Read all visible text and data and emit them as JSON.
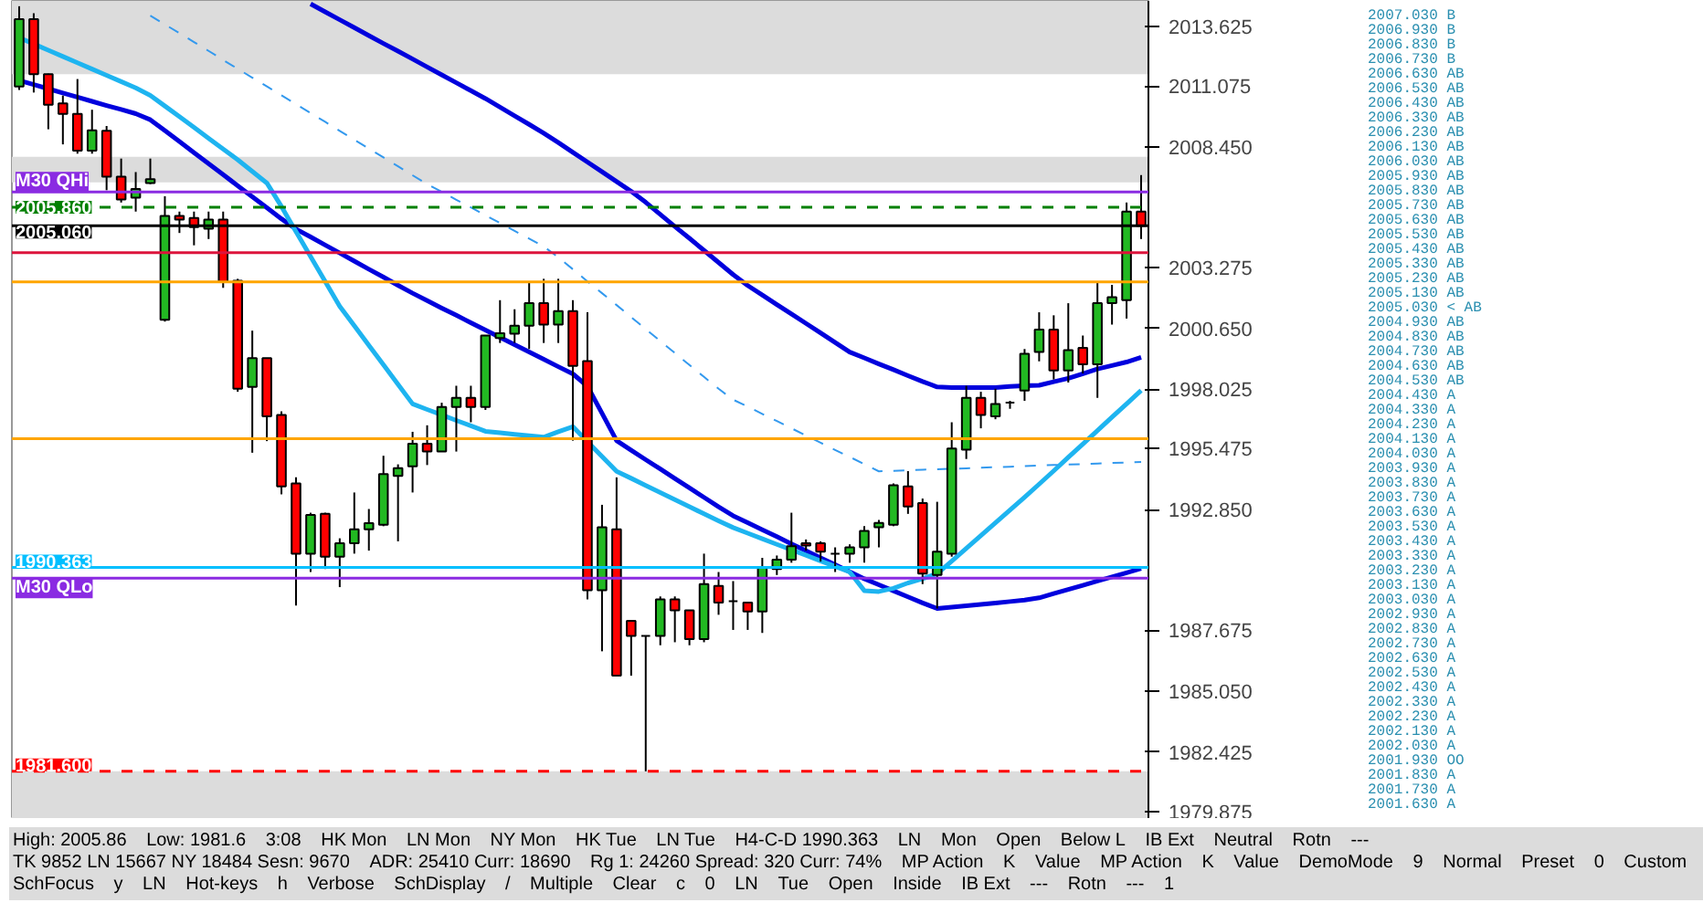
{
  "chart_data": {
    "type": "candlestick",
    "categories": [
      null,
      null,
      null,
      null,
      null,
      null,
      null,
      null,
      null,
      null,
      null,
      null,
      null,
      null,
      null,
      null,
      null,
      null,
      null,
      null,
      null,
      null,
      null,
      null,
      null,
      null,
      null,
      null,
      null,
      null,
      null,
      null,
      null,
      null,
      null,
      null,
      null,
      null,
      null,
      null,
      null,
      null,
      null,
      null,
      null,
      null,
      null,
      null,
      null,
      null,
      null,
      null,
      null,
      null,
      null,
      null,
      null,
      null,
      null,
      null,
      null,
      null,
      null,
      null,
      null,
      null,
      null,
      null,
      null,
      null,
      null,
      null,
      null,
      null,
      null,
      null,
      null,
      null
    ],
    "ohlc": [
      [
        2011.05,
        2014.5,
        2010.9,
        2013.94
      ],
      [
        2013.94,
        2014.2,
        2010.79,
        2011.58
      ],
      [
        2011.58,
        2011.6,
        2009.21,
        2010.26
      ],
      [
        2010.32,
        2010.66,
        2008.56,
        2009.87
      ],
      [
        2009.87,
        2011.37,
        2008.16,
        2008.29
      ],
      [
        2008.29,
        2010.05,
        2008.16,
        2009.16
      ],
      [
        2009.14,
        2009.35,
        2006.59,
        2007.17
      ],
      [
        2007.17,
        2007.95,
        2006.06,
        2006.19
      ],
      [
        2006.27,
        2007.37,
        2005.67,
        2006.64
      ],
      [
        2006.9,
        2007.95,
        2006.85,
        2007.06
      ],
      [
        2001.02,
        2006.33,
        2000.94,
        2005.48
      ],
      [
        2005.48,
        2005.67,
        2004.75,
        2005.33
      ],
      [
        2005.4,
        2005.67,
        2004.22,
        2005.0
      ],
      [
        2004.93,
        2005.67,
        2004.49,
        2005.33
      ],
      [
        2005.33,
        2005.67,
        2002.39,
        2002.65
      ],
      [
        2002.7,
        2002.78,
        1997.92,
        1998.05
      ],
      [
        1998.13,
        2000.55,
        1995.3,
        1999.37
      ],
      [
        1999.37,
        1999.37,
        1995.8,
        1996.87
      ],
      [
        1996.92,
        1997.08,
        1993.51,
        1993.85
      ],
      [
        1993.98,
        1994.24,
        1988.73,
        1990.96
      ],
      [
        1990.96,
        1992.72,
        1990.17,
        1992.62
      ],
      [
        1992.67,
        1992.72,
        1990.3,
        1990.83
      ],
      [
        1990.83,
        1991.62,
        1989.52,
        1991.41
      ],
      [
        1991.41,
        1993.59,
        1990.96,
        1992.01
      ],
      [
        1992.01,
        1992.88,
        1991.09,
        1992.27
      ],
      [
        1992.2,
        1995.17,
        1992.14,
        1994.38
      ],
      [
        1994.3,
        1994.8,
        1991.49,
        1994.64
      ],
      [
        1994.72,
        1996.2,
        1993.59,
        1995.69
      ],
      [
        1995.69,
        1996.48,
        1994.77,
        1995.35
      ],
      [
        1995.35,
        1997.45,
        1995.35,
        1997.27
      ],
      [
        1997.27,
        1998.18,
        1995.35,
        1997.66
      ],
      [
        1997.66,
        1998.18,
        1996.61,
        1997.27
      ],
      [
        1997.27,
        2000.34,
        1997.14,
        2000.34
      ],
      [
        2000.23,
        2001.86,
        2000.02,
        2000.44
      ],
      [
        2000.42,
        2001.47,
        2000.02,
        2000.76
      ],
      [
        2000.76,
        2002.65,
        1999.76,
        2001.73
      ],
      [
        2001.73,
        2002.78,
        2000.02,
        2000.81
      ],
      [
        2000.81,
        2002.78,
        2000.02,
        2001.39
      ],
      [
        2001.39,
        2001.86,
        1995.82,
        1999.03
      ],
      [
        1999.24,
        2001.34,
        1988.99,
        1989.39
      ],
      [
        1989.39,
        1993.06,
        1986.76,
        1992.09
      ],
      [
        1992.01,
        1994.24,
        1985.71,
        1985.71
      ],
      [
        1988.07,
        1988.07,
        1985.71,
        1987.42
      ],
      [
        1987.42,
        1987.42,
        1981.6,
        1987.42
      ],
      [
        1987.42,
        1989.12,
        1987.02,
        1988.99
      ],
      [
        1988.99,
        1989.12,
        1987.15,
        1988.52
      ],
      [
        1988.52,
        1988.52,
        1987.02,
        1987.28
      ],
      [
        1987.28,
        1990.96,
        1987.15,
        1989.65
      ],
      [
        1989.57,
        1990.17,
        1988.33,
        1988.86
      ],
      [
        1988.91,
        1989.78,
        1987.68,
        1988.91
      ],
      [
        1988.86,
        1988.86,
        1987.68,
        1988.47
      ],
      [
        1988.47,
        1990.78,
        1987.55,
        1990.36
      ],
      [
        1990.3,
        1990.88,
        1990.04,
        1990.7
      ],
      [
        1990.7,
        1992.72,
        1990.57,
        1991.28
      ],
      [
        1991.41,
        1991.57,
        1991.09,
        1991.31
      ],
      [
        1991.41,
        1991.49,
        1990.62,
        1991.04
      ],
      [
        1990.96,
        1991.23,
        1990.17,
        1990.96
      ],
      [
        1990.96,
        1991.36,
        1990.57,
        1991.23
      ],
      [
        1991.23,
        1992.14,
        1990.57,
        1991.94
      ],
      [
        1992.09,
        1992.41,
        1991.23,
        1992.28
      ],
      [
        1992.2,
        1993.98,
        1992.14,
        1993.9
      ],
      [
        1993.85,
        1994.51,
        1992.67,
        1992.99
      ],
      [
        1993.14,
        1993.33,
        1989.65,
        1990.1
      ],
      [
        1990.04,
        1993.19,
        1988.6,
        1991.04
      ],
      [
        1990.96,
        1996.61,
        1990.83,
        1995.48
      ],
      [
        1995.43,
        1998.18,
        1995.03,
        1997.66
      ],
      [
        1997.66,
        1997.92,
        1996.35,
        1996.92
      ],
      [
        1996.87,
        1998.05,
        1996.74,
        1997.4
      ],
      [
        1997.45,
        1997.53,
        1997.19,
        1997.45
      ],
      [
        1997.97,
        1999.76,
        1997.53,
        1999.55
      ],
      [
        1999.63,
        2001.34,
        1999.23,
        2000.6
      ],
      [
        2000.6,
        2001.21,
        1998.45,
        1998.84
      ],
      [
        1998.84,
        2001.73,
        1998.32,
        1999.71
      ],
      [
        1999.81,
        2000.34,
        1998.71,
        1999.1
      ],
      [
        1999.1,
        2002.6,
        1997.66,
        2001.73
      ],
      [
        2001.73,
        2002.52,
        2000.81,
        2001.99
      ],
      [
        2001.86,
        2006.06,
        2001.07,
        2005.67
      ],
      [
        2005.67,
        2007.24,
        2004.49,
        2005.06
      ]
    ],
    "colors": [
      "#22b922",
      "#ff0000",
      "#ff0000",
      "#ff0000",
      "#ff0000",
      "#22b922",
      "#ff0000",
      "#ff0000",
      "#22b922",
      "#22b922",
      "#22b922",
      "#ff0000",
      "#ff0000",
      "#22b922",
      "#ff0000",
      "#ff0000",
      "#22b922",
      "#ff0000",
      "#ff0000",
      "#ff0000",
      "#22b922",
      "#ff0000",
      "#22b922",
      "#22b922",
      "#22b922",
      "#22b922",
      "#22b922",
      "#22b922",
      "#ff0000",
      "#22b922",
      "#22b922",
      "#ff0000",
      "#22b922",
      "#22b922",
      "#22b922",
      "#22b922",
      "#ff0000",
      "#22b922",
      "#ff0000",
      "#ff0000",
      "#22b922",
      "#ff0000",
      "#ff0000",
      "#000000",
      "#22b922",
      "#ff0000",
      "#ff0000",
      "#22b922",
      "#ff0000",
      "#000000",
      "#ff0000",
      "#22b922",
      "#22b922",
      "#22b922",
      "#ff0000",
      "#ff0000",
      "#000000",
      "#22b922",
      "#22b922",
      "#22b922",
      "#22b922",
      "#ff0000",
      "#ff0000",
      "#22b922",
      "#22b922",
      "#22b922",
      "#ff0000",
      "#22b922",
      "#000000",
      "#22b922",
      "#22b922",
      "#ff0000",
      "#22b922",
      "#ff0000",
      "#22b922",
      "#22b922",
      "#22b922",
      "#ff0000"
    ],
    "series": [
      {
        "type": "line",
        "color": "#0000dd",
        "values": [
          null,
          null,
          null,
          null,
          null,
          null,
          null,
          null,
          null,
          null,
          null,
          null,
          null,
          null,
          null,
          null,
          null,
          null,
          null,
          null,
          2014.6,
          2014.26,
          2013.92,
          2013.58,
          2013.24,
          2012.9,
          2012.57,
          2012.23,
          2011.89,
          2011.55,
          2011.21,
          2010.87,
          2010.53,
          2010.16,
          2009.79,
          2009.42,
          2009.04,
          2008.64,
          2008.22,
          2007.8,
          2007.38,
          2006.96,
          2006.54,
          2006.07,
          2005.55,
          2005.03,
          2004.52,
          2004.0,
          2003.48,
          2002.96,
          2002.49,
          2002.08,
          2001.67,
          2001.27,
          2000.86,
          2000.45,
          2000.04,
          1999.63,
          1999.38,
          1999.12,
          1998.87,
          1998.61,
          1998.36,
          1998.13,
          1998.1,
          1998.1,
          1998.1,
          1998.1,
          1998.15,
          1998.18,
          1998.2,
          1998.35,
          1998.5,
          1998.7,
          1998.9,
          1999.05,
          1999.2,
          1999.4
        ]
      },
      {
        "type": "line",
        "color": "#0000dd",
        "values": [
          2011.31,
          2011.13,
          2010.95,
          2010.77,
          2010.59,
          2010.41,
          2010.23,
          2010.06,
          2009.88,
          2009.62,
          2009.15,
          2008.68,
          2008.2,
          2007.73,
          2007.26,
          2006.78,
          2006.31,
          2005.84,
          2005.36,
          2004.92,
          2004.58,
          2004.23,
          2003.89,
          2003.54,
          2003.19,
          2002.85,
          2002.5,
          2002.16,
          2001.84,
          2001.52,
          2001.21,
          2000.89,
          2000.58,
          2000.26,
          1999.95,
          1999.63,
          1999.32,
          1999.0,
          1998.69,
          1998.16,
          1997.0,
          1995.82,
          1995.41,
          1995.0,
          1994.6,
          1994.19,
          1993.79,
          1993.38,
          1992.97,
          1992.59,
          1992.29,
          1991.99,
          1991.69,
          1991.38,
          1991.08,
          1990.78,
          1990.48,
          1990.18,
          1989.88,
          1989.62,
          1989.36,
          1989.1,
          1988.84,
          1988.6,
          1988.66,
          1988.72,
          1988.78,
          1988.84,
          1988.9,
          1988.96,
          1989.06,
          1989.24,
          1989.42,
          1989.6,
          1989.78,
          1989.96,
          1990.14,
          1990.32
        ]
      },
      {
        "type": "line",
        "color": "#1eb4f0",
        "values": [
          2013.15,
          2012.88,
          2012.61,
          2012.34,
          2012.07,
          2011.8,
          2011.53,
          2011.26,
          2010.99,
          2010.67,
          2010.21,
          2009.75,
          2009.29,
          2008.82,
          2008.36,
          2007.9,
          2007.4,
          2006.9,
          2005.89,
          2004.81,
          2003.74,
          2002.67,
          2001.6,
          2000.76,
          1999.92,
          1999.08,
          1998.24,
          1997.4,
          1997.16,
          1996.93,
          1996.69,
          1996.46,
          1996.22,
          1996.16,
          1996.09,
          1996.03,
          1995.97,
          1996.2,
          1996.42,
          1995.78,
          1995.14,
          1994.5,
          1994.2,
          1993.89,
          1993.59,
          1993.28,
          1992.98,
          1992.67,
          1992.37,
          1992.08,
          1991.84,
          1991.6,
          1991.36,
          1991.13,
          1990.89,
          1990.65,
          1990.41,
          1990.17,
          1989.37,
          1989.33,
          1989.47,
          1989.7,
          1989.88,
          1990.1,
          1990.64,
          1991.19,
          1991.74,
          1992.29,
          1992.84,
          1993.39,
          1993.95,
          1994.52,
          1995.1,
          1995.67,
          1996.25,
          1996.83,
          1997.4,
          1997.98
        ]
      },
      {
        "type": "line",
        "color": "#3399ee",
        "line_style": "dashed",
        "values": [
          null,
          null,
          null,
          null,
          null,
          null,
          null,
          null,
          null,
          2014.1,
          2013.72,
          2013.34,
          2012.96,
          2012.58,
          2012.19,
          2011.81,
          2011.43,
          2011.05,
          2010.67,
          2010.29,
          2009.91,
          2009.53,
          2009.14,
          2008.76,
          2008.38,
          2008.0,
          2007.62,
          2007.23,
          2006.85,
          2006.52,
          2006.18,
          2005.85,
          2005.51,
          2005.18,
          2004.84,
          2004.51,
          2004.17,
          2003.7,
          2003.19,
          2002.67,
          2002.16,
          2001.65,
          2001.13,
          2000.62,
          2000.1,
          1999.59,
          1999.07,
          1998.56,
          1998.05,
          1997.58,
          1997.28,
          1996.97,
          1996.66,
          1996.35,
          1996.04,
          1995.73,
          1995.42,
          1995.12,
          1994.81,
          1994.5,
          1994.52,
          1994.55,
          1994.57,
          1994.59,
          1994.61,
          1994.63,
          1994.66,
          1994.68,
          1994.7,
          1994.72,
          1994.75,
          1994.77,
          1994.79,
          1994.81,
          1994.83,
          1994.86,
          1994.88,
          1994.9
        ]
      }
    ],
    "ylim": [
      1979.55,
      2014.73
    ],
    "yticks": [
      {
        "value": 2013.625,
        "label": "2013.625"
      },
      {
        "value": 2011.075,
        "label": "2011.075"
      },
      {
        "value": 2008.45,
        "label": "2008.450"
      },
      {
        "value": 2003.275,
        "label": "2003.275"
      },
      {
        "value": 2000.65,
        "label": "2000.650"
      },
      {
        "value": 1998.025,
        "label": "1998.025"
      },
      {
        "value": 1995.475,
        "label": "1995.475"
      },
      {
        "value": 1992.85,
        "label": "1992.850"
      },
      {
        "value": 1987.675,
        "label": "1987.675"
      },
      {
        "value": 1985.05,
        "label": "1985.050"
      },
      {
        "value": 1982.425,
        "label": "1982.425"
      },
      {
        "value": 1979.875,
        "label": "1979.875"
      }
    ],
    "tick_labels": "y",
    "grid": false,
    "legend": false,
    "ref_lines": [
      {
        "axis": "y",
        "value": 2006.51,
        "label": "M30 QHi",
        "color": "#8a2be2"
      },
      {
        "axis": "y",
        "value": 1989.91,
        "label": "M30 QLo",
        "color": "#8a2be2"
      },
      {
        "axis": "y",
        "value": 2005.86,
        "label": "2005.860",
        "color": "#008000",
        "line_style": "dashed"
      },
      {
        "axis": "y",
        "value": 2005.06,
        "label": "2005.060",
        "color": "#000000"
      },
      {
        "axis": "y",
        "value": 1990.363,
        "label": "1990.363",
        "color": "#00bfff"
      },
      {
        "axis": "y",
        "value": 1981.6,
        "label": "1981.600",
        "color": "#ff0000",
        "line_style": "dashed"
      },
      {
        "axis": "y",
        "value": 2002.65,
        "color": "#ffa500"
      },
      {
        "axis": "y",
        "value": 1995.9,
        "color": "#ffa500"
      },
      {
        "axis": "y",
        "value": 2003.9,
        "color": "#dc143c"
      }
    ],
    "bands": [
      {
        "axis": "y",
        "from": 2011.58,
        "to": 2014.73,
        "color": "#dcdcdc"
      },
      {
        "axis": "y",
        "from": 2006.93,
        "to": 2008.03,
        "color": "#dcdcdc"
      },
      {
        "axis": "y",
        "from": 1979.55,
        "to": 1981.6,
        "color": "#dcdcdc"
      }
    ],
    "annotations": [
      "2007.030 B",
      "2006.930 B",
      "2006.830 B",
      "2006.730 B",
      "2006.630 AB",
      "2006.530 AB",
      "2006.430 AB",
      "2006.330 AB",
      "2006.230 AB",
      "2006.130 AB",
      "2006.030 AB",
      "2005.930 AB",
      "2005.830 AB",
      "2005.730 AB",
      "2005.630 AB",
      "2005.530 AB",
      "2005.430 AB",
      "2005.330 AB",
      "2005.230 AB",
      "2005.130 AB",
      "2005.030 < AB",
      "2004.930 AB",
      "2004.830 AB",
      "2004.730 AB",
      "2004.630 AB",
      "2004.530 AB",
      "2004.430 A",
      "2004.330 A",
      "2004.230 A",
      "2004.130 A",
      "2004.030 A",
      "2003.930 A",
      "2003.830 A",
      "2003.730 A",
      "2003.630 A",
      "2003.530 A",
      "2003.430 A",
      "2003.330 A",
      "2003.230 A",
      "2003.130 A",
      "2003.030 A",
      "2002.930 A",
      "2002.830 A",
      "2002.730 A",
      "2002.630 A",
      "2002.530 A",
      "2002.430 A",
      "2002.330 A",
      "2002.230 A",
      "2002.130 A",
      "2002.030 A",
      "2001.930 OO",
      "2001.830 A",
      "2001.730 A",
      "2001.630 A",
      "High: 2005.86",
      "Low: 1981.6",
      "3:08",
      "HK Mon",
      "LN Mon",
      "NY Mon",
      "HK Tue",
      "LN Tue",
      "H4-C-D 1990.363",
      "LN",
      "Mon",
      "Open",
      "Below L",
      "IB Ext",
      "Neutral",
      "Rotn",
      "---",
      "TK 9852  LN 15667  NY 18484  Sesn: 9670",
      "ADR: 25410  Curr: 18690",
      "Rg 1: 24260 Spread: 320  Curr: 74%",
      "MP Action",
      "K",
      "Value",
      "MP Action",
      "K",
      "Value",
      "DemoMode",
      "9",
      "Normal",
      "Preset",
      "0",
      "Custom",
      "SchFocus",
      "y",
      "LN",
      "Hot-keys",
      "h",
      "Verbose",
      "SchDisplay",
      "/",
      "Multiple",
      "Clear",
      "c",
      "0",
      "LN",
      "Tue",
      "Open",
      "Inside",
      "IB Ext",
      "---",
      "Rotn",
      "---",
      "1"
    ]
  }
}
